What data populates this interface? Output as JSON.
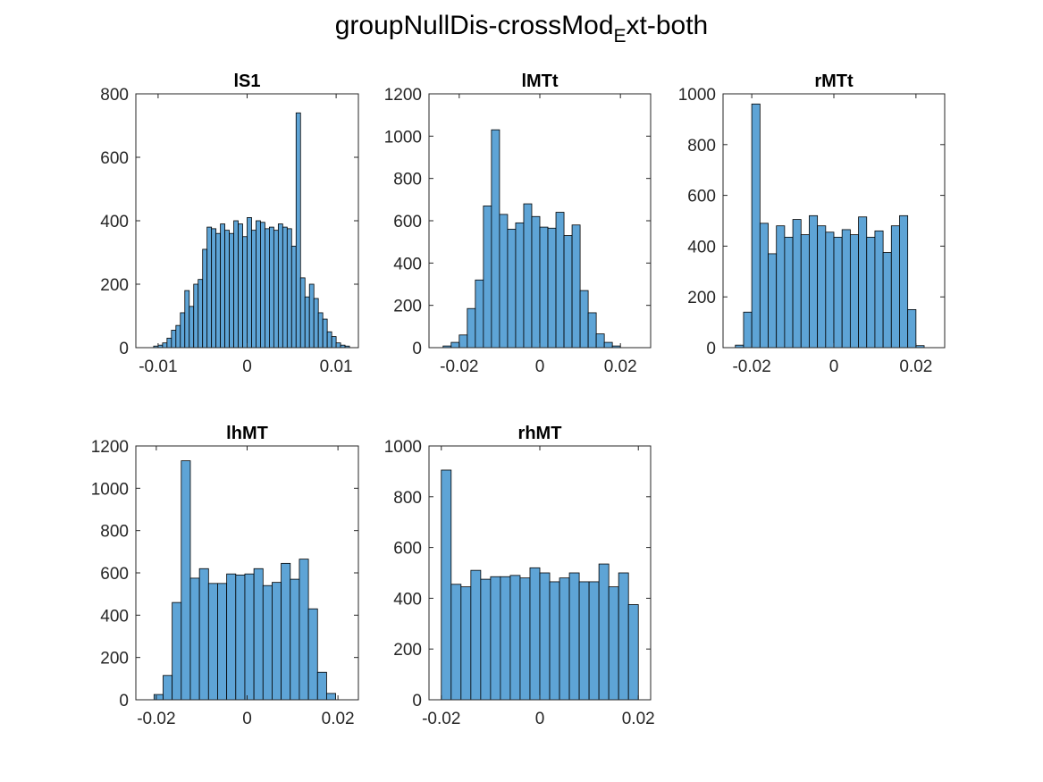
{
  "figure": {
    "title_main": "groupNullDis-crossMod",
    "title_sub": "E",
    "title_rest": "xt-both",
    "bar_color": "#5ea4d6",
    "bar_edge": "#000000"
  },
  "chart_data": [
    {
      "type": "bar",
      "title": "lS1",
      "xlim": [
        -0.0125,
        0.0125
      ],
      "ylim": [
        0,
        800
      ],
      "xticks": [
        -0.01,
        0,
        0.01
      ],
      "xtick_labels": [
        "-0.01",
        "0",
        "0.01"
      ],
      "yticks": [
        0,
        200,
        400,
        600,
        800
      ],
      "bin_edges_start": -0.0105,
      "bin_width": 0.0005,
      "values": [
        5,
        8,
        15,
        30,
        55,
        70,
        110,
        180,
        130,
        200,
        215,
        310,
        380,
        375,
        360,
        390,
        370,
        360,
        400,
        390,
        350,
        410,
        370,
        400,
        395,
        375,
        380,
        370,
        390,
        380,
        375,
        320,
        740,
        220,
        160,
        200,
        155,
        110,
        90,
        50,
        35,
        15,
        8,
        5
      ]
    },
    {
      "type": "bar",
      "title": "lMTt",
      "xlim": [
        -0.0275,
        0.0275
      ],
      "ylim": [
        0,
        1200
      ],
      "xticks": [
        -0.02,
        0,
        0.02
      ],
      "xtick_labels": [
        "-0.02",
        "0",
        "0.02"
      ],
      "yticks": [
        0,
        200,
        400,
        600,
        800,
        1000,
        1200
      ],
      "bin_edges_start": -0.024,
      "bin_width": 0.002,
      "values": [
        8,
        25,
        60,
        185,
        320,
        670,
        1030,
        630,
        560,
        590,
        680,
        620,
        570,
        565,
        640,
        530,
        580,
        270,
        165,
        65,
        25,
        8
      ]
    },
    {
      "type": "bar",
      "title": "rMTt",
      "xlim": [
        -0.027,
        0.027
      ],
      "ylim": [
        0,
        1000
      ],
      "xticks": [
        -0.02,
        0,
        0.02
      ],
      "xtick_labels": [
        "-0.02",
        "0",
        "0.02"
      ],
      "yticks": [
        0,
        200,
        400,
        600,
        800,
        1000
      ],
      "bin_edges_start": -0.024,
      "bin_width": 0.002,
      "values": [
        10,
        140,
        960,
        490,
        370,
        480,
        435,
        505,
        445,
        520,
        480,
        455,
        435,
        465,
        445,
        515,
        435,
        460,
        375,
        480,
        520,
        150,
        8
      ]
    },
    {
      "type": "bar",
      "title": "lhMT",
      "xlim": [
        -0.0245,
        0.0245
      ],
      "ylim": [
        0,
        1200
      ],
      "xticks": [
        -0.02,
        0,
        0.02
      ],
      "xtick_labels": [
        "-0.02",
        "0",
        "0.02"
      ],
      "yticks": [
        0,
        200,
        400,
        600,
        800,
        1000,
        1200
      ],
      "bin_edges_start": -0.0205,
      "bin_width": 0.002,
      "values": [
        25,
        115,
        460,
        1130,
        575,
        620,
        550,
        550,
        595,
        590,
        595,
        620,
        540,
        555,
        645,
        570,
        665,
        430,
        130,
        30
      ]
    },
    {
      "type": "bar",
      "title": "rhMT",
      "xlim": [
        -0.0225,
        0.0225
      ],
      "ylim": [
        0,
        1000
      ],
      "xticks": [
        -0.02,
        0,
        0.02
      ],
      "xtick_labels": [
        "-0.02",
        "0",
        "0.02"
      ],
      "yticks": [
        0,
        200,
        400,
        600,
        800,
        1000
      ],
      "bin_edges_start": -0.02,
      "bin_width": 0.002,
      "values": [
        905,
        455,
        445,
        510,
        475,
        485,
        485,
        490,
        480,
        520,
        500,
        465,
        480,
        500,
        465,
        465,
        535,
        445,
        500,
        375
      ]
    }
  ]
}
